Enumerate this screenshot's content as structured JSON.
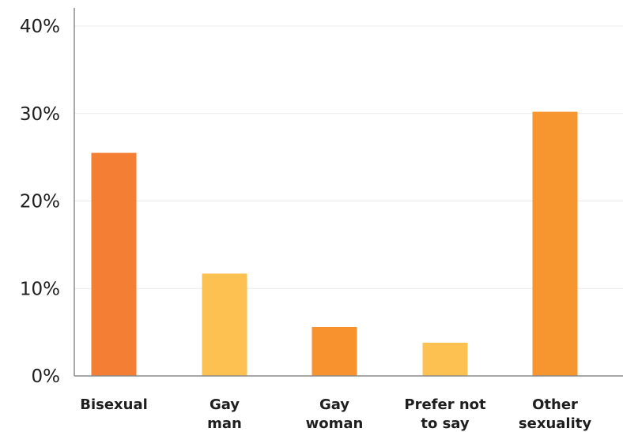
{
  "chart_data": {
    "type": "bar",
    "categories": [
      [
        "Bisexual"
      ],
      [
        "Gay",
        "man"
      ],
      [
        "Gay",
        "woman"
      ],
      [
        "Prefer not",
        "to say"
      ],
      [
        "Other",
        "sexuality"
      ]
    ],
    "values": [
      25.5,
      11.7,
      5.6,
      3.8,
      30.2
    ],
    "bar_colors": [
      "#F47F34",
      "#FDC152",
      "#F7922E",
      "#FDC152",
      "#F7962F"
    ],
    "yticks": [
      0,
      10,
      20,
      30,
      40
    ],
    "ytick_labels": [
      "0%",
      "10%",
      "20%",
      "30%",
      "40%"
    ],
    "ylim": [
      0,
      40
    ],
    "unit": "%",
    "grid": true,
    "gridline_color": "#e9e9e9",
    "axis_color": "#8a8a8a",
    "title": "",
    "xlabel": "",
    "ylabel": ""
  }
}
